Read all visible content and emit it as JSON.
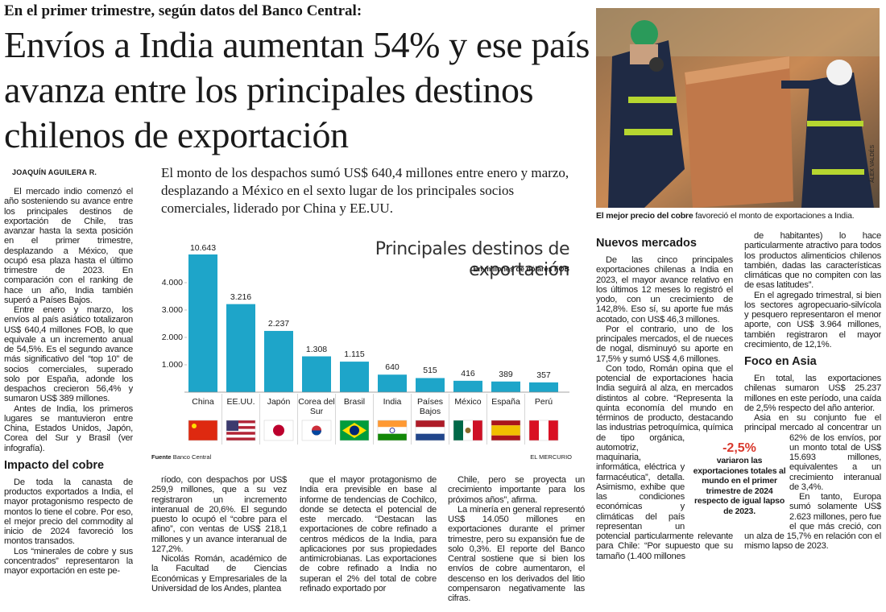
{
  "kicker": "En el primer trimestre, según datos del Banco Central:",
  "title": "Envíos a India aumentan 54% y ese país avanza entre los principales destinos chilenos de exportación",
  "byline": "JOAQUÍN AGUILERA R.",
  "deck": "El monto de los despachos sumó US$ 640,4 millones entre enero y marzo, desplazando a México en el sexto lugar de los principales socios comerciales, liderado por China y EE.UU.",
  "photo_credit": "ÁLEX VALDÉS",
  "caption": {
    "lead": "El mejor precio del cobre",
    "text": "favoreció el monto de exportaciones a India."
  },
  "columns": [
    {
      "blocks": [
        {
          "paragraph": "El mercado indio comenzó el año sosteniendo su avance entre los principales destinos de exportación de Chile, tras avanzar hasta la sexta posición en el primer trimestre, desplazando a México, que ocupó esa plaza hasta el último trimestre de 2023. En comparación con el ranking de hace un año, India también superó a Países Bajos."
        },
        {
          "paragraph": "Entre enero y marzo, los envíos al país asiático totalizaron US$ 640,4 millones FOB, lo que equivale a un incremento anual de 54,5%. Es el segundo avance más significativo del “top 10” de socios comerciales, superado solo por España, adonde los despachos crecieron 56,4% y sumaron US$ 389 millones."
        },
        {
          "paragraph": "Antes de India, los primeros lugares se mantuvieron entre China, Estados Unidos, Japón, Corea del Sur y Brasil (ver infografía)."
        },
        {
          "heading": "Impacto del cobre"
        },
        {
          "paragraph": "De toda la canasta de productos exportados a India, el mayor protagonismo respecto de montos lo tiene el cobre. Por eso, el mejor precio del commodity al inicio de 2024 favoreció los montos transados."
        },
        {
          "paragraph": "Los “minerales de cobre y sus concentrados” representaron la mayor exportación en este pe-"
        }
      ]
    },
    {
      "blocks": [
        {
          "paragraph": "ríodo, con despachos por US$ 259,9 millones, que a su vez registraron un incremento interanual de 20,6%. El segundo puesto lo ocupó el “cobre para el afino”, con ventas de US$ 218,1 millones y un avance interanual de 127,2%."
        },
        {
          "paragraph": "Nicolás Román, académico de la Facultad de Ciencias Económicas y Empresariales de la Universidad de los Andes, plantea"
        }
      ]
    },
    {
      "blocks": [
        {
          "paragraph": "que el mayor protagonismo de India era previsible en base al informe de tendencias de Cochilco, donde se detecta el potencial de este mercado. “Destacan las exportaciones de cobre refinado a centros médicos de la India, para aplicaciones por sus propiedades antimicrobianas. Las exportaciones de cobre refinado a India no superan el 2% del total de cobre refinado exportado por"
        }
      ]
    },
    {
      "blocks": [
        {
          "paragraph": "Chile, pero se proyecta un crecimiento importante para los próximos años”, afirma."
        },
        {
          "paragraph": "La minería en general representó US$ 14.050 millones en exportaciones durante el primer trimestre, pero su expansión fue de solo 0,3%. El reporte del Banco Central sostiene que si bien los envíos de cobre aumentaron, el descenso en los derivados del litio compensaron negativamente las cifras."
        }
      ]
    },
    {
      "blocks": [
        {
          "heading": "Nuevos mercados"
        },
        {
          "paragraph": "De las cinco principales exportaciones chilenas a India en 2023, el mayor avance relativo en los últimos 12 meses lo registró el yodo, con un crecimiento de 142,8%. Eso sí, su aporte fue más acotado, con US$ 46,3 millones."
        },
        {
          "paragraph": "Por el contrario, uno de los principales mercados, el de nueces de nogal, disminuyó su aporte en 17,5% y sumó US$ 4,6 millones."
        },
        {
          "paragraph": "Con todo, Román opina que el potencial de exportaciones hacia India seguirá al alza, en mercados distintos al cobre. “Representa la quinta economía del mundo en términos de producto, destacando las industrias petroquímica, química de tipo orgánica, automotriz, maquinaria, informática, eléctrica y farmacéutica”, detalla. Asimismo, exhibe que las condiciones económicas y climáticas del país representan un potencial particularmente relevante para Chile: “Por supuesto que su tamaño (1.400 millones"
        }
      ]
    },
    {
      "blocks": [
        {
          "paragraph": "de habitantes) lo hace particularmente atractivo para todos los productos alimenticios chilenos también, dadas las características climáticas que no compiten con las de esas latitudes”."
        },
        {
          "paragraph": "En el agregado trimestral, si bien los sectores agropecuario-silvícola y pesquero representaron el menor aporte, con US$ 3.964 millones, también registraron el mayor crecimiento, de 12,1%."
        },
        {
          "heading": "Foco en Asia"
        },
        {
          "paragraph": "En total, las exportaciones chilenas sumaron US$ 25.237 millones en este período, una caída de 2,5% respecto del año anterior."
        },
        {
          "paragraph": "Asia en su conjunto fue el principal mercado al concentrar un 62% de los envíos, por un monto total de US$ 15.693 millones, equivalentes a un crecimiento interanual de 3,4%."
        },
        {
          "paragraph": "En tanto, Europa sumó solamente US$ 2.623 millones, pero fue el que más creció, con un alza de 15,7% en relación con el mismo lapso de 2023."
        }
      ]
    }
  ],
  "callout": {
    "figure": "-2,5%",
    "text": "variaron las exportaciones totales al mundo en el primer trimestre de 2024 respecto de igual lapso de 2023."
  },
  "chart_data": {
    "type": "bar",
    "title": "Principales destinos de exportación",
    "subtitle": "En millones de dólares FOB",
    "categories": [
      "China",
      "EE.UU.",
      "Japón",
      "Corea del Sur",
      "Brasil",
      "India",
      "Países Bajos",
      "México",
      "España",
      "Perú"
    ],
    "values": [
      10643,
      3216,
      2237,
      1308,
      1115,
      640,
      515,
      416,
      389,
      357
    ],
    "value_labels": [
      "10.643",
      "3.216",
      "2.237",
      "1.308",
      "1.115",
      "640",
      "515",
      "416",
      "389",
      "357"
    ],
    "color": "#1ea5c9",
    "ylim": [
      0,
      5000
    ],
    "yticks": [
      {
        "value": 1000,
        "label": "1.000"
      },
      {
        "value": 2000,
        "label": "2.000"
      },
      {
        "value": 3000,
        "label": "3.000"
      },
      {
        "value": 4000,
        "label": "4.000"
      }
    ],
    "source_label": "Fuente",
    "source": "Banco Central",
    "publisher": "EL MERCURIO"
  }
}
